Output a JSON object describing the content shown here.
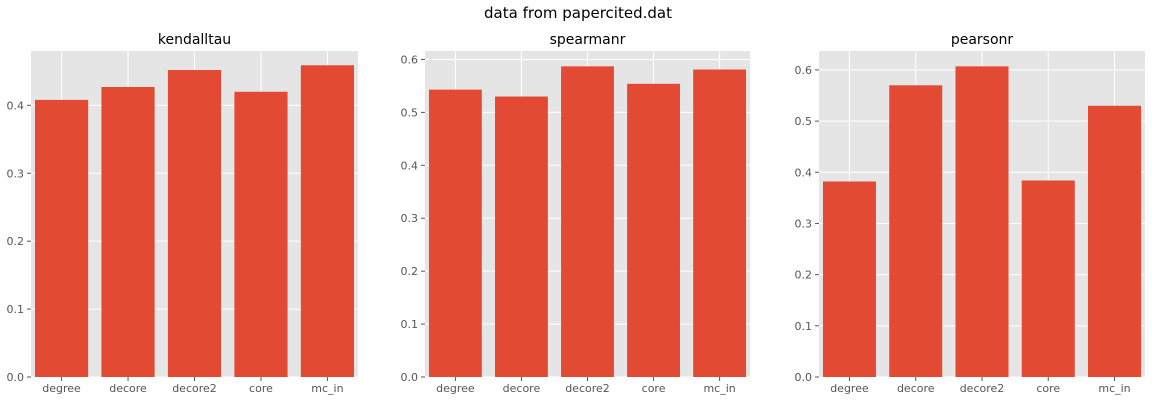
{
  "figure": {
    "suptitle": "data from papercited.dat"
  },
  "style": {
    "bar_color": "#e24a33",
    "axes_bg": "#e5e5e5",
    "grid_color": "#ffffff",
    "tick_color": "#555555"
  },
  "chart_data": [
    {
      "type": "bar",
      "title": "kendalltau",
      "categories": [
        "degree",
        "decore",
        "decore2",
        "core",
        "mc_in"
      ],
      "values": [
        0.408,
        0.427,
        0.452,
        0.42,
        0.459
      ],
      "ylim": [
        0,
        0.48
      ],
      "yticks": [
        0.0,
        0.1,
        0.2,
        0.3,
        0.4
      ],
      "ytick_labels": [
        "0.0",
        "0.1",
        "0.2",
        "0.3",
        "0.4"
      ],
      "grid": true
    },
    {
      "type": "bar",
      "title": "spearmanr",
      "categories": [
        "degree",
        "decore",
        "decore2",
        "core",
        "mc_in"
      ],
      "values": [
        0.543,
        0.53,
        0.587,
        0.554,
        0.581
      ],
      "ylim": [
        0,
        0.616
      ],
      "yticks": [
        0.0,
        0.1,
        0.2,
        0.3,
        0.4,
        0.5,
        0.6
      ],
      "ytick_labels": [
        "0.0",
        "0.1",
        "0.2",
        "0.3",
        "0.4",
        "0.5",
        "0.6"
      ],
      "grid": true
    },
    {
      "type": "bar",
      "title": "pearsonr",
      "categories": [
        "degree",
        "decore",
        "decore2",
        "core",
        "mc_in"
      ],
      "values": [
        0.382,
        0.57,
        0.607,
        0.384,
        0.53
      ],
      "ylim": [
        0,
        0.637
      ],
      "yticks": [
        0.0,
        0.1,
        0.2,
        0.3,
        0.4,
        0.5,
        0.6
      ],
      "ytick_labels": [
        "0.0",
        "0.1",
        "0.2",
        "0.3",
        "0.4",
        "0.5",
        "0.6"
      ],
      "grid": true
    }
  ]
}
